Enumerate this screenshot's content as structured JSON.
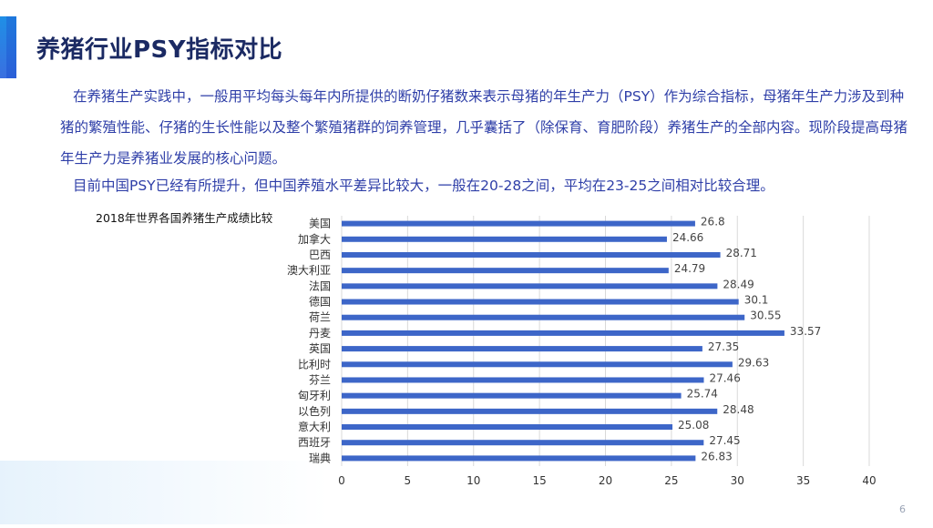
{
  "slide": {
    "title": "养猪行业PSY指标对比",
    "paragraph1": "在养猪生产实践中，一般用平均每头每年内所提供的断奶仔猪数来表示母猪的年生产力（PSY）作为综合指标，母猪年生产力涉及到种猪的繁殖性能、仔猪的生长性能以及整个繁殖猪群的饲养管理，几乎囊括了（除保育、育肥阶段）养猪生产的全部内容。现阶段提高母猪年生产力是养猪业发展的核心问题。",
    "paragraph2": "目前中国PSY已经有所提升，但中国养殖水平差异比较大，一般在20-28之间，平均在23-25之间相对比较合理。",
    "page_number": "6"
  },
  "colors": {
    "title": "#1b2a63",
    "text": "#2f3fa8",
    "bar": "#3d66c8",
    "grid": "#d9d9d9"
  },
  "chart_data": {
    "type": "bar",
    "orientation": "horizontal",
    "title": "2018年世界各国养猪生产成绩比较",
    "categories": [
      "美国",
      "加拿大",
      "巴西",
      "澳大利亚",
      "法国",
      "德国",
      "荷兰",
      "丹麦",
      "英国",
      "比利时",
      "芬兰",
      "匈牙利",
      "以色列",
      "意大利",
      "西班牙",
      "瑞典"
    ],
    "values": [
      26.8,
      24.66,
      28.71,
      24.79,
      28.49,
      30.1,
      30.55,
      33.57,
      27.35,
      29.63,
      27.46,
      25.74,
      28.48,
      25.08,
      27.45,
      26.83
    ],
    "value_labels": [
      "26.8",
      "24.66",
      "28.71",
      "24.79",
      "28.49",
      "30.1",
      "30.55",
      "33.57",
      "27.35",
      "29.63",
      "27.46",
      "25.74",
      "28.48",
      "25.08",
      "27.45",
      "26.83"
    ],
    "xlim": [
      0,
      40
    ],
    "xticks": [
      "0",
      "5",
      "10",
      "15",
      "20",
      "25",
      "30",
      "35",
      "40"
    ],
    "grid": true,
    "legend": "none"
  }
}
